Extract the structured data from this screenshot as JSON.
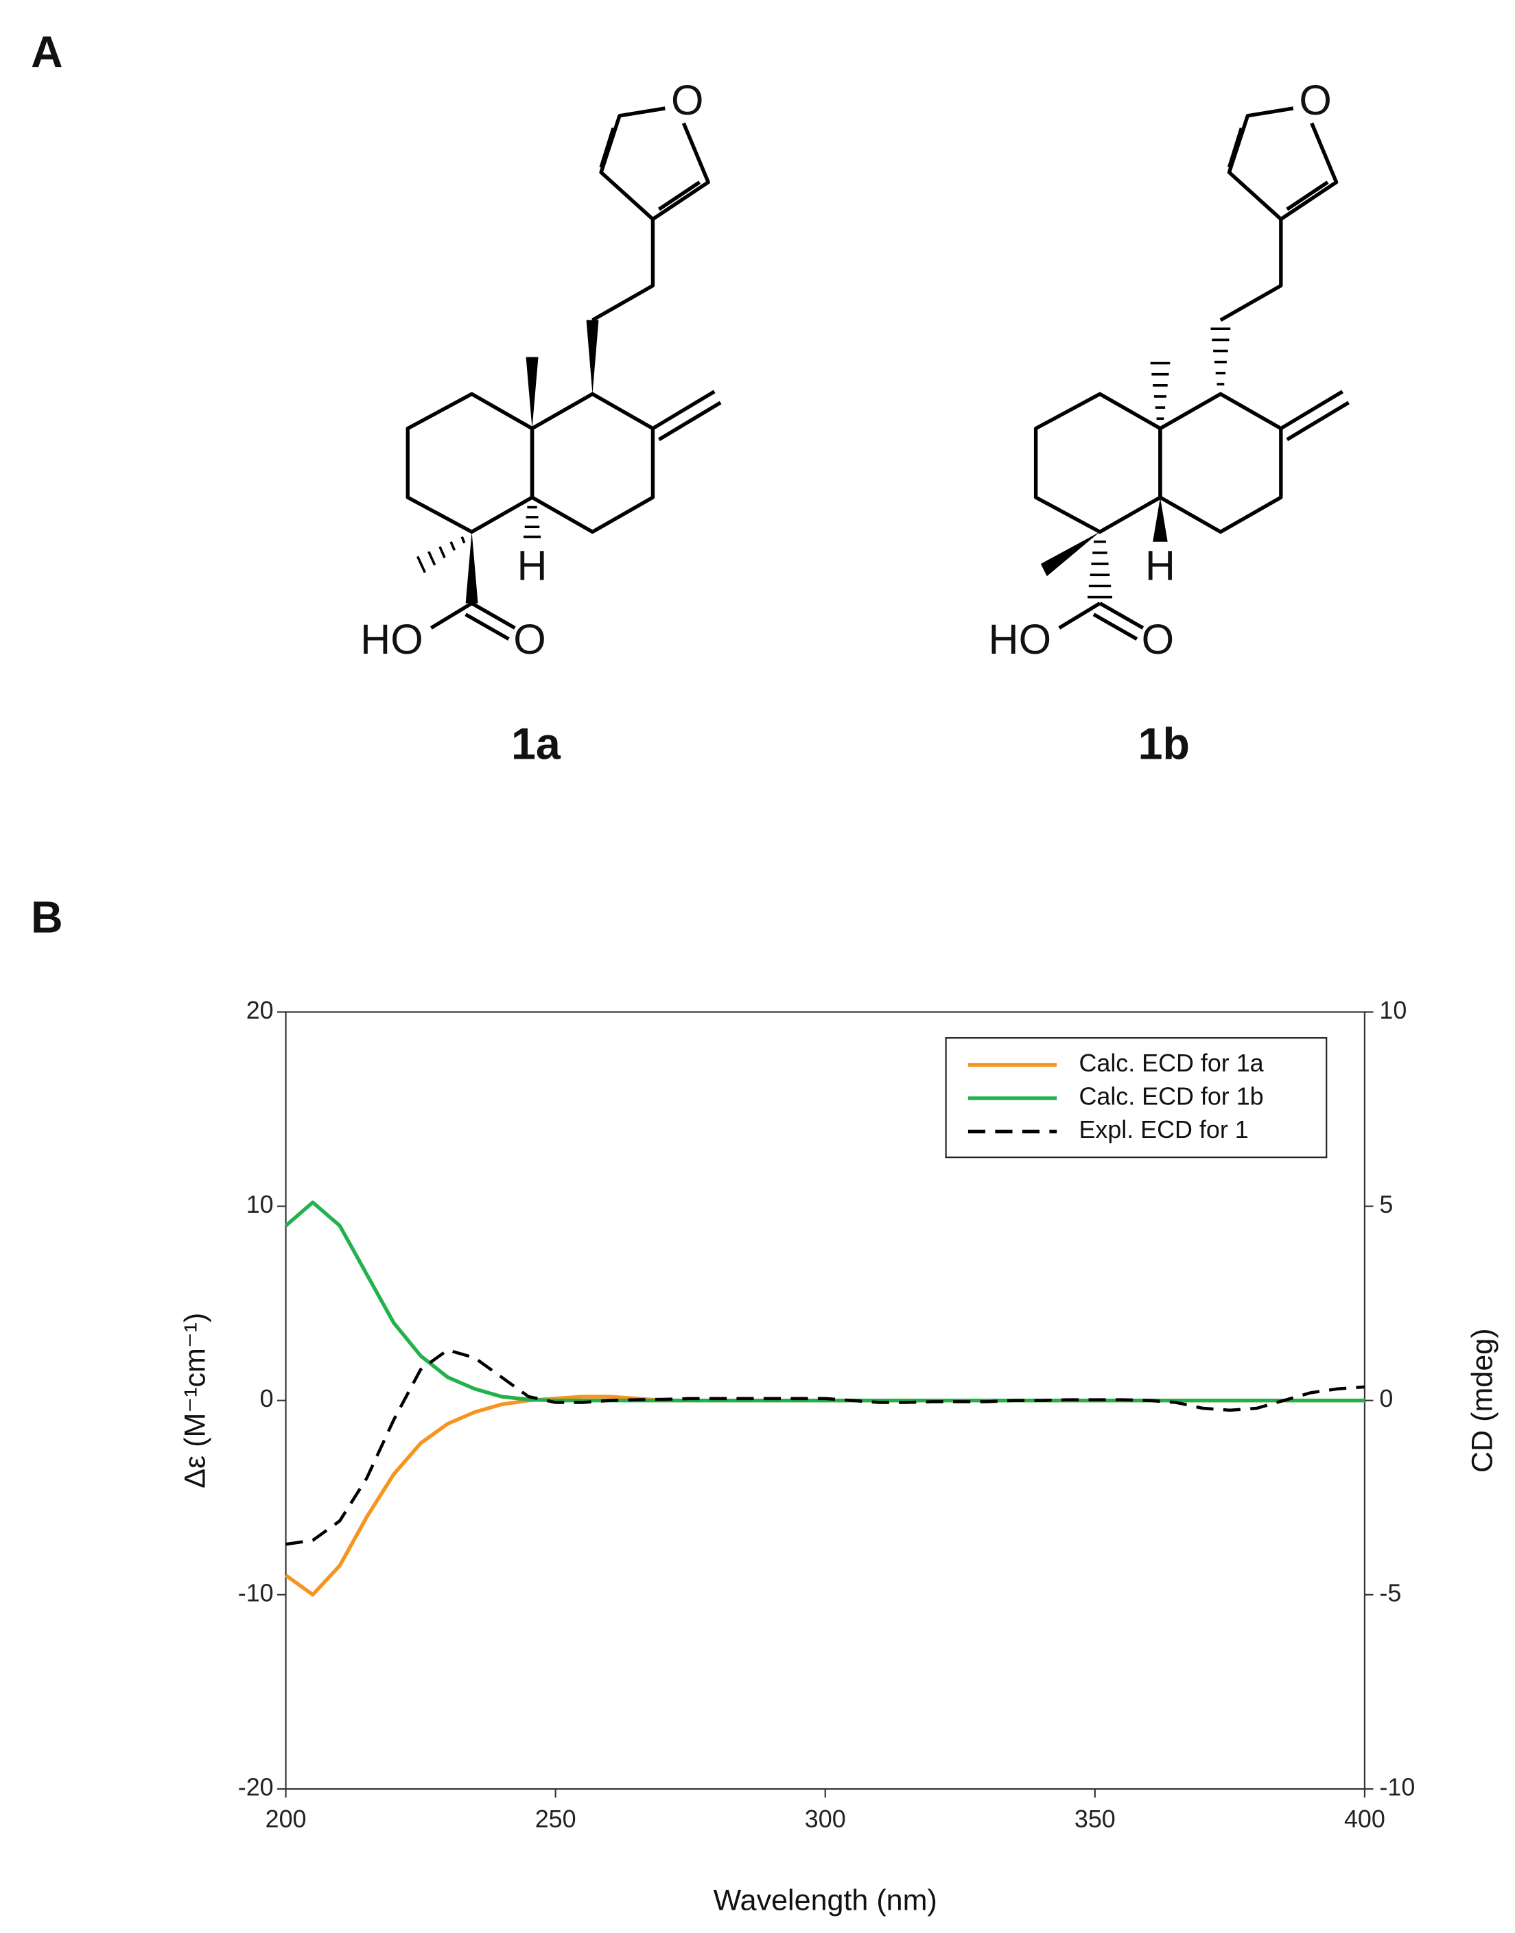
{
  "panel_a": {
    "label": "A",
    "compounds": [
      {
        "name": "1a",
        "furan_o": "O",
        "h": "H",
        "hydroxyl": "HO",
        "carbonyl_o": "O"
      },
      {
        "name": "1b",
        "furan_o": "O",
        "h": "H",
        "hydroxyl": "HO",
        "carbonyl_o": "O"
      }
    ]
  },
  "panel_b": {
    "label": "B"
  },
  "chart_data": {
    "type": "line",
    "x_label": "Wavelength (nm)",
    "y_label": "Δε (M⁻¹cm⁻¹)",
    "y2_label": "CD (mdeg)",
    "x": [
      200,
      205,
      210,
      215,
      220,
      225,
      230,
      235,
      240,
      245,
      250,
      255,
      260,
      265,
      270,
      275,
      280,
      285,
      290,
      295,
      300,
      305,
      310,
      315,
      320,
      325,
      330,
      335,
      340,
      345,
      350,
      355,
      360,
      365,
      370,
      375,
      380,
      385,
      390,
      395,
      400
    ],
    "xlim": [
      200,
      400
    ],
    "xticks": [
      200,
      250,
      300,
      350,
      400
    ],
    "ylim": [
      -20,
      20
    ],
    "yticks": [
      -20,
      -10,
      0,
      10,
      20
    ],
    "y2lim": [
      -10,
      10
    ],
    "y2ticks": [
      -10,
      -5,
      0,
      5,
      10
    ],
    "legend": "upper right",
    "series": [
      {
        "name": "Calc. ECD for 1a",
        "color": "#f7931e",
        "dash": "solid",
        "values": [
          -9,
          -10,
          -8.5,
          -6,
          -3.8,
          -2.2,
          -1.2,
          -0.6,
          -0.2,
          0,
          0.1,
          0.2,
          0.2,
          0.1,
          0,
          0,
          0,
          0,
          0,
          0,
          0,
          0,
          0,
          0,
          0,
          0,
          0,
          0,
          0,
          0,
          0,
          0,
          0,
          0,
          0,
          0,
          0,
          0,
          0,
          0,
          0
        ]
      },
      {
        "name": "Calc. ECD for 1b",
        "color": "#22b14c",
        "dash": "solid",
        "values": [
          9,
          10.2,
          9,
          6.5,
          4,
          2.3,
          1.2,
          0.6,
          0.2,
          0.05,
          0,
          0,
          0,
          0,
          0,
          0,
          0,
          0,
          0,
          0,
          0,
          0,
          0,
          0,
          0,
          0,
          0,
          0,
          0,
          0,
          0,
          0,
          0,
          0,
          0,
          0,
          0,
          0,
          0,
          0,
          0
        ]
      },
      {
        "name": "Expl. ECD for 1",
        "color": "#000000",
        "dash": "dashed",
        "axis": "y2",
        "values": [
          -3.7,
          -3.6,
          -3.1,
          -2,
          -0.5,
          0.8,
          1.3,
          1.1,
          0.6,
          0.1,
          -0.05,
          -0.05,
          0,
          0.02,
          0.03,
          0.05,
          0.05,
          0.05,
          0.05,
          0.05,
          0.05,
          0,
          -0.05,
          -0.05,
          -0.03,
          -0.03,
          -0.03,
          0,
          0,
          0.02,
          0.02,
          0.02,
          0,
          -0.05,
          -0.2,
          -0.25,
          -0.2,
          0,
          0.2,
          0.3,
          0.35
        ]
      }
    ]
  }
}
